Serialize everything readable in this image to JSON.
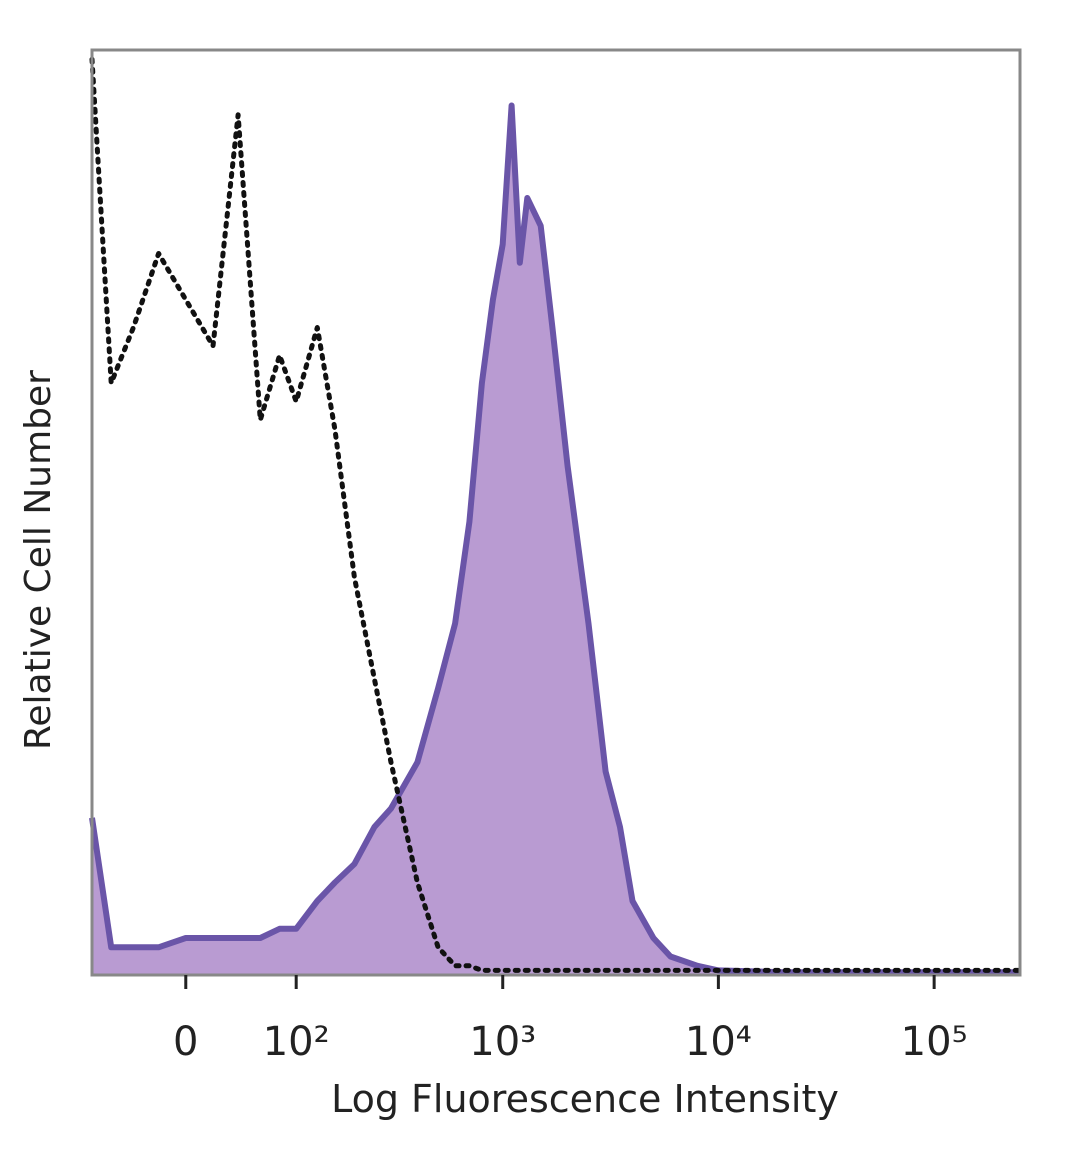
{
  "chart_data": {
    "type": "line",
    "x_label": "Log Fluorescence Intensity",
    "y_label": "Relative Cell Number",
    "xscale": "biexponential",
    "xlim": [
      -80,
      250000
    ],
    "ylim": [
      0,
      100
    ],
    "xticks": [
      0,
      {
        "value": 100,
        "label": "10²"
      },
      {
        "value": 1000,
        "label": "10³"
      },
      {
        "value": 10000,
        "label": "10⁴"
      },
      {
        "value": 100000,
        "label": "10⁵"
      }
    ],
    "x": [
      -80,
      -60,
      -40,
      -20,
      0,
      20,
      40,
      60,
      80,
      100,
      130,
      160,
      200,
      250,
      300,
      400,
      500,
      600,
      700,
      800,
      900,
      1000,
      1100,
      1200,
      1300,
      1500,
      1700,
      2000,
      2500,
      3000,
      3500,
      4000,
      5000,
      6000,
      8000,
      10000,
      20000,
      50000,
      100000,
      250000
    ],
    "series": [
      {
        "color": "#6a55a8",
        "fill": "#b99bd2",
        "dash": "solid",
        "values": [
          17,
          3,
          3,
          3,
          4,
          4,
          4,
          4,
          5,
          5,
          8,
          10,
          12,
          16,
          18,
          23,
          31,
          38,
          49,
          64,
          73,
          79,
          94,
          77,
          84,
          81,
          70,
          55,
          38,
          22,
          16,
          8,
          4,
          2,
          1,
          0.5,
          0.3,
          0.3,
          0.3,
          0.3
        ]
      },
      {
        "color": "#111111",
        "dash": "dotted",
        "values": [
          99,
          64,
          70,
          78,
          73,
          68,
          93,
          60,
          67,
          62,
          70,
          59,
          43,
          32,
          23,
          10,
          3,
          1,
          1,
          0.5,
          0.5,
          0.5,
          0.5,
          0.5,
          0.5,
          0.5,
          0.5,
          0.5,
          0.5,
          0.5,
          0.5,
          0.5,
          0.5,
          0.5,
          0.5,
          0.5,
          0.5,
          0.5,
          0.5,
          0.5
        ]
      }
    ]
  }
}
